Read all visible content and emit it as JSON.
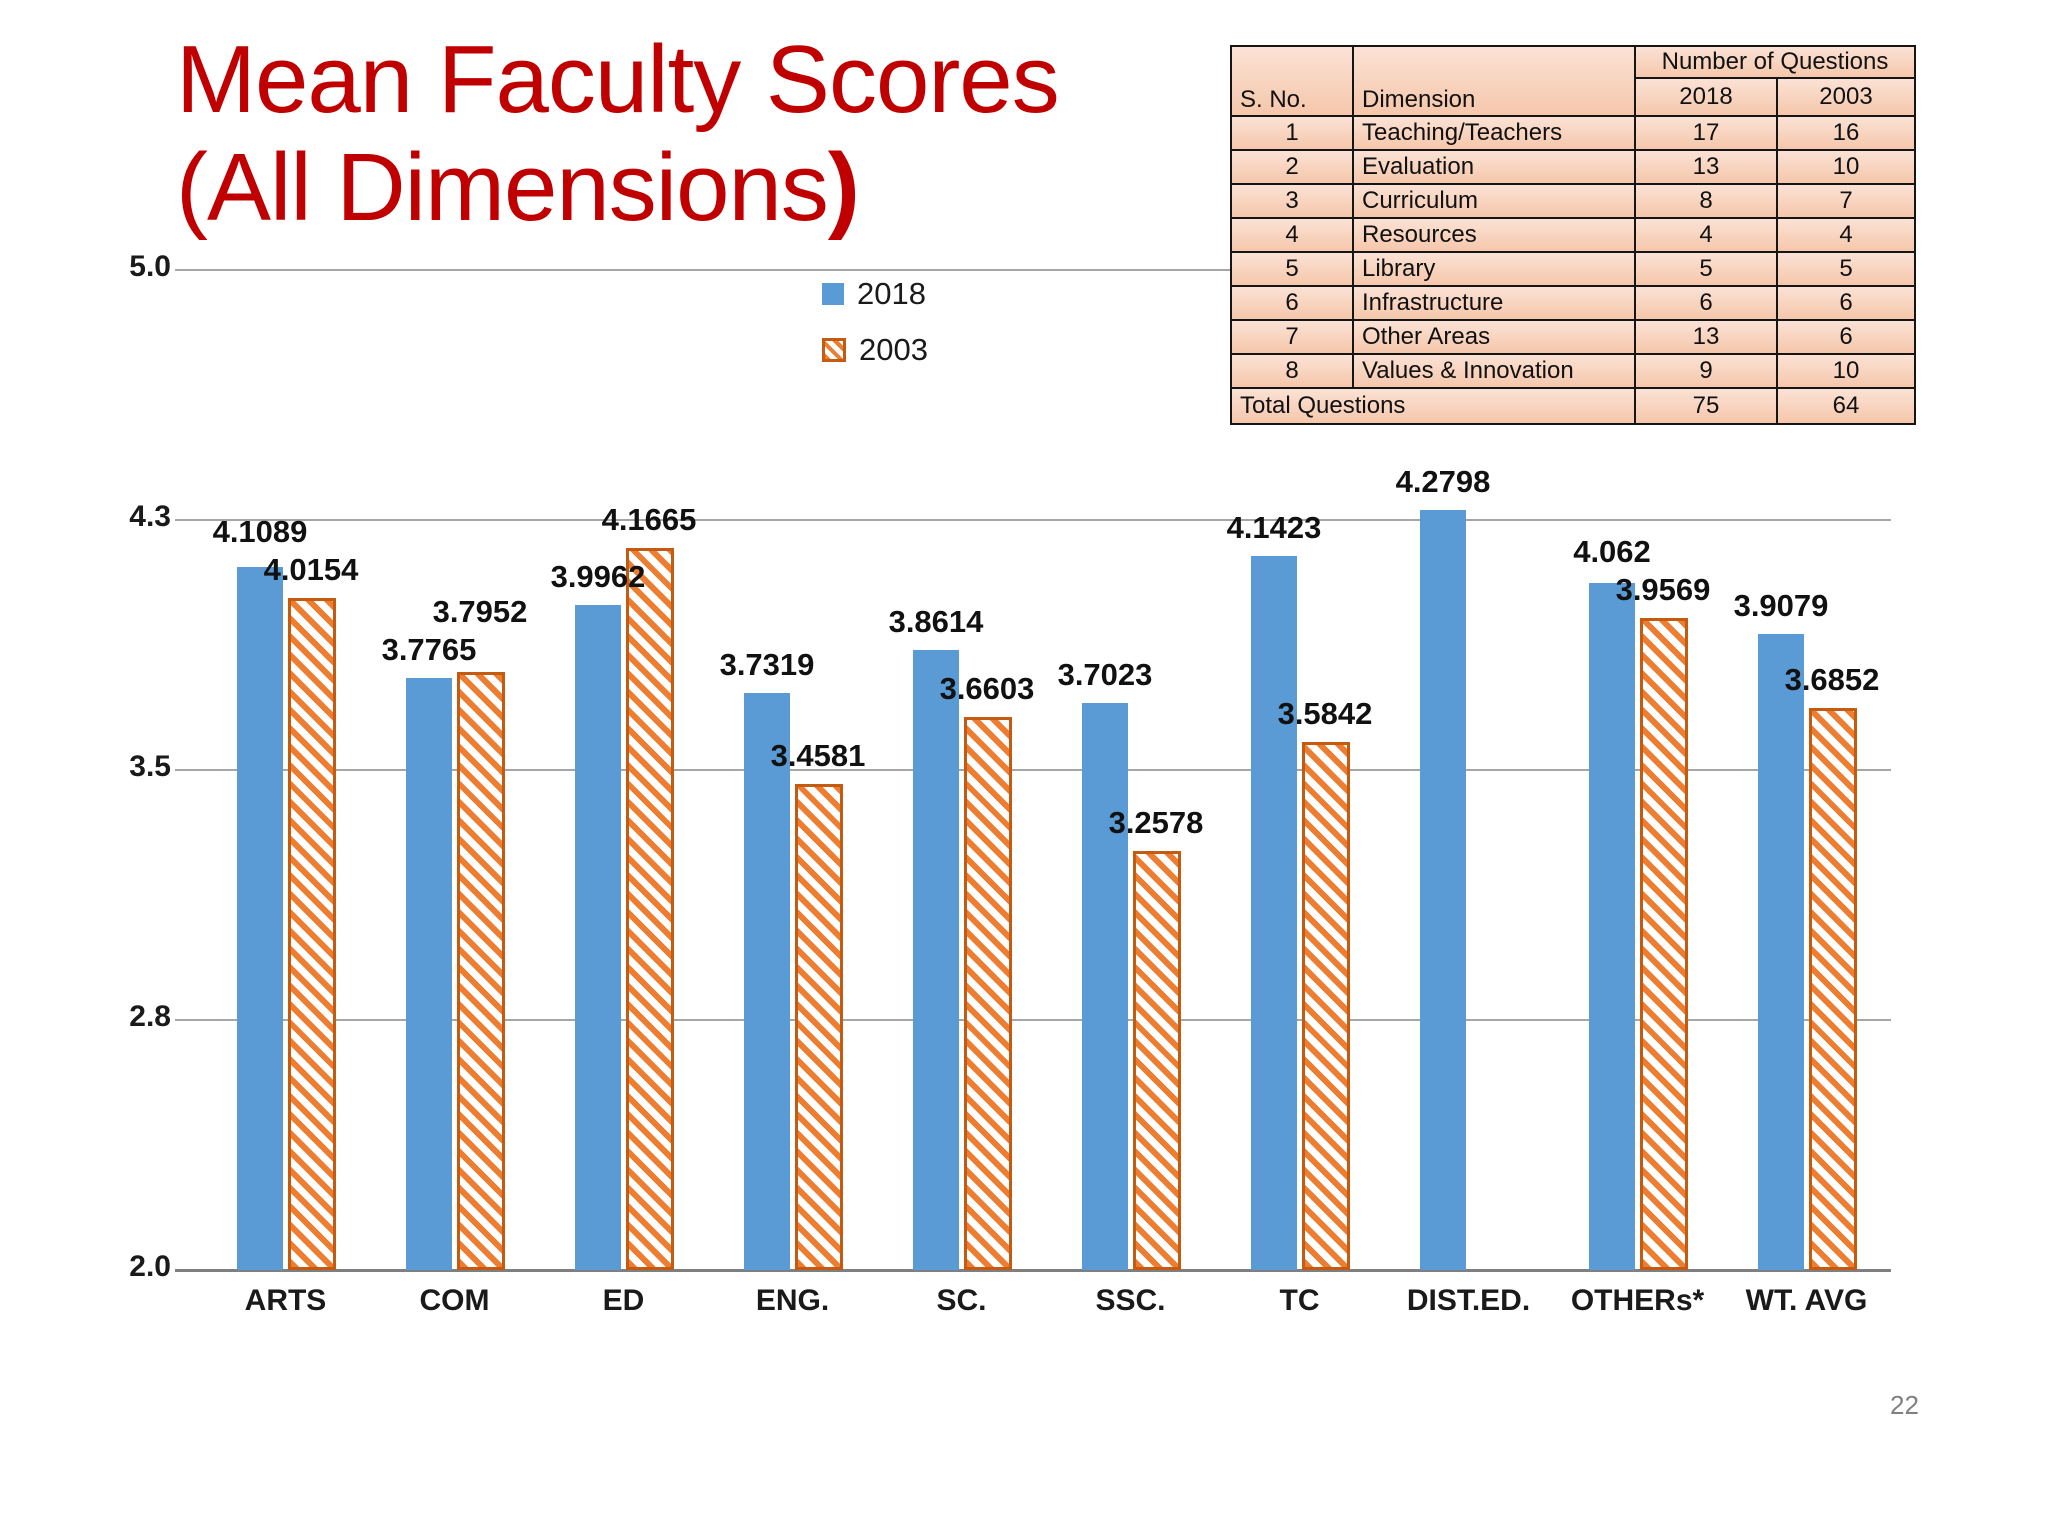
{
  "slide": {
    "title_line1": "Mean Faculty Scores",
    "title_line2_text": "(All Dimensions",
    "title_line2_paren": ")",
    "page_number": "22"
  },
  "colors": {
    "title_red": "#C00000",
    "bar_2018_blue": "#5B9BD5",
    "bar_2003_orange": "#ED7D31",
    "bar_2003_border": "#C55A11",
    "gridline_gray": "#A6A6A6",
    "table_fill": "#F8CBAD"
  },
  "legend": {
    "items": [
      {
        "label": "2018",
        "swatch": "solid-blue-square"
      },
      {
        "label": "2003",
        "swatch": "orange-diagonal-hatch-square"
      }
    ]
  },
  "chart_data": {
    "type": "bar",
    "title": "Mean Faculty Scores (All Dimensions)",
    "categories": [
      "ARTS",
      "COM",
      "ED",
      "ENG.",
      "SC.",
      "SSC.",
      "TC",
      "DIST.ED.",
      "OTHERs*",
      "WT. AVG"
    ],
    "series": [
      {
        "name": "2018",
        "values": [
          4.1089,
          3.7765,
          3.9962,
          3.7319,
          3.8614,
          3.7023,
          4.1423,
          4.2798,
          4.062,
          3.9079
        ]
      },
      {
        "name": "2003",
        "values": [
          4.0154,
          3.7952,
          4.1665,
          3.4581,
          3.6603,
          3.2578,
          3.5842,
          null,
          3.9569,
          3.6852
        ]
      }
    ],
    "ylim": [
      2.0,
      5.0
    ],
    "yticks": [
      {
        "value": 2.0,
        "label": "2.0"
      },
      {
        "value": 2.75,
        "label": "2.8"
      },
      {
        "value": 3.5,
        "label": "3.5"
      },
      {
        "value": 4.25,
        "label": "4.3"
      },
      {
        "value": 5.0,
        "label": "5.0"
      }
    ],
    "grid": true,
    "legend_position": "top-center",
    "xlabel": "",
    "ylabel": ""
  },
  "table": {
    "span_header": "Number of Questions",
    "columns": [
      "S. No.",
      "Dimension",
      "2018",
      "2003"
    ],
    "rows": [
      [
        "1",
        "Teaching/Teachers",
        "17",
        "16"
      ],
      [
        "2",
        "Evaluation",
        "13",
        "10"
      ],
      [
        "3",
        "Curriculum",
        "8",
        "7"
      ],
      [
        "4",
        "Resources",
        "4",
        "4"
      ],
      [
        "5",
        "Library",
        "5",
        "5"
      ],
      [
        "6",
        "Infrastructure",
        "6",
        "6"
      ],
      [
        "7",
        "Other Areas",
        "13",
        "6"
      ],
      [
        "8",
        "Values & Innovation",
        "9",
        "10"
      ]
    ],
    "total_row": [
      "Total Questions",
      "75",
      "64"
    ]
  }
}
